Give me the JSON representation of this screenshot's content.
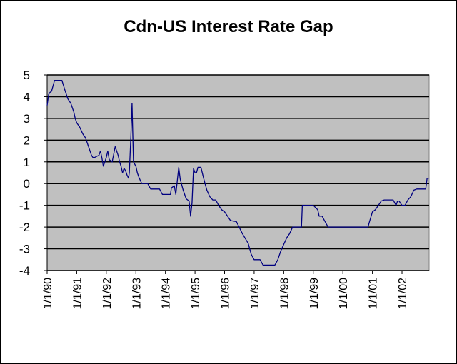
{
  "chart_data": {
    "type": "line",
    "title": "Cdn-US Interest Rate Gap",
    "xlabel": "",
    "ylabel": "",
    "ylim": [
      -4,
      5
    ],
    "yticks": [
      5,
      4,
      3,
      2,
      1,
      0,
      -1,
      -2,
      -3,
      -4
    ],
    "xlim": [
      1990.0,
      2002.917
    ],
    "x_tick_labels": [
      "1/1/90",
      "1/1/91",
      "1/1/92",
      "1/1/93",
      "1/1/94",
      "1/1/95",
      "1/1/96",
      "1/1/97",
      "1/1/98",
      "1/1/99",
      "1/1/00",
      "1/1/01",
      "1/1/02"
    ],
    "x_tick_years": [
      1990,
      1991,
      1992,
      1993,
      1994,
      1995,
      1996,
      1997,
      1998,
      1999,
      2000,
      2001,
      2002
    ],
    "grid": "horizontal major gridlines",
    "legend": "none",
    "colors": {
      "line": "#000080",
      "plot_area": "#c0c0c0",
      "grid": "#000000"
    },
    "series": [
      {
        "name": "Cdn-US Interest Rate Gap",
        "x": [
          1990.0,
          1990.05,
          1990.1,
          1990.15,
          1990.25,
          1990.5,
          1990.6,
          1990.7,
          1990.8,
          1990.9,
          1990.95,
          1991.0,
          1991.1,
          1991.2,
          1991.3,
          1991.5,
          1991.55,
          1991.6,
          1991.67,
          1991.75,
          1991.8,
          1991.85,
          1991.9,
          1991.95,
          1992.0,
          1992.05,
          1992.1,
          1992.2,
          1992.3,
          1992.4,
          1992.45,
          1992.5,
          1992.55,
          1992.6,
          1992.65,
          1992.7,
          1992.75,
          1992.78,
          1992.83,
          1992.87,
          1992.92,
          1993.0,
          1993.05,
          1993.1,
          1993.2,
          1993.4,
          1993.5,
          1993.8,
          1993.9,
          1994.1,
          1994.17,
          1994.2,
          1994.3,
          1994.35,
          1994.45,
          1994.5,
          1994.6,
          1994.7,
          1994.8,
          1994.85,
          1994.9,
          1994.95,
          1995.0,
          1995.05,
          1995.1,
          1995.2,
          1995.3,
          1995.4,
          1995.5,
          1995.6,
          1995.7,
          1995.8,
          1995.9,
          1996.0,
          1996.2,
          1996.4,
          1996.6,
          1996.8,
          1996.9,
          1997.0,
          1997.1,
          1997.2,
          1997.3,
          1997.5,
          1997.6,
          1997.7,
          1997.8,
          1997.9,
          1998.0,
          1998.1,
          1998.2,
          1998.3,
          1998.6,
          1998.63,
          1998.7,
          1999.0,
          1999.15,
          1999.2,
          1999.3,
          1999.4,
          1999.5,
          2000.0,
          2000.5,
          2000.85,
          2000.9,
          2001.0,
          2001.1,
          2001.2,
          2001.3,
          2001.4,
          2001.5,
          2001.6,
          2001.7,
          2001.8,
          2001.85,
          2001.9,
          2002.0,
          2002.1,
          2002.2,
          2002.3,
          2002.4,
          2002.5,
          2002.6,
          2002.7,
          2002.8,
          2002.85,
          2002.917
        ],
        "values": [
          3.6,
          4.1,
          4.2,
          4.25,
          4.75,
          4.75,
          4.3,
          3.9,
          3.7,
          3.3,
          3.0,
          2.8,
          2.6,
          2.3,
          2.1,
          1.3,
          1.2,
          1.2,
          1.25,
          1.3,
          1.5,
          1.2,
          0.8,
          1.0,
          1.2,
          1.5,
          1.1,
          1.0,
          1.7,
          1.3,
          1.0,
          0.8,
          0.5,
          0.7,
          0.6,
          0.4,
          0.25,
          0.5,
          2.1,
          3.7,
          1.0,
          0.8,
          0.5,
          0.3,
          0.0,
          0.0,
          -0.25,
          -0.25,
          -0.5,
          -0.5,
          -0.5,
          -0.2,
          -0.1,
          -0.5,
          0.75,
          0.2,
          -0.3,
          -0.7,
          -0.8,
          -1.5,
          -0.9,
          0.7,
          0.5,
          0.5,
          0.75,
          0.75,
          0.2,
          -0.3,
          -0.6,
          -0.75,
          -0.75,
          -1.0,
          -1.2,
          -1.3,
          -1.7,
          -1.75,
          -2.3,
          -2.75,
          -3.25,
          -3.5,
          -3.5,
          -3.5,
          -3.75,
          -3.75,
          -3.75,
          -3.75,
          -3.5,
          -3.1,
          -2.8,
          -2.5,
          -2.3,
          -2.0,
          -2.0,
          -1.0,
          -1.0,
          -1.0,
          -1.2,
          -1.5,
          -1.5,
          -1.75,
          -2.0,
          -2.0,
          -2.0,
          -2.0,
          -1.75,
          -1.3,
          -1.2,
          -1.0,
          -0.8,
          -0.75,
          -0.75,
          -0.75,
          -0.75,
          -1.0,
          -0.8,
          -0.8,
          -1.0,
          -1.0,
          -0.75,
          -0.6,
          -0.3,
          -0.25,
          -0.25,
          -0.25,
          -0.25,
          0.25,
          0.25
        ]
      }
    ]
  }
}
